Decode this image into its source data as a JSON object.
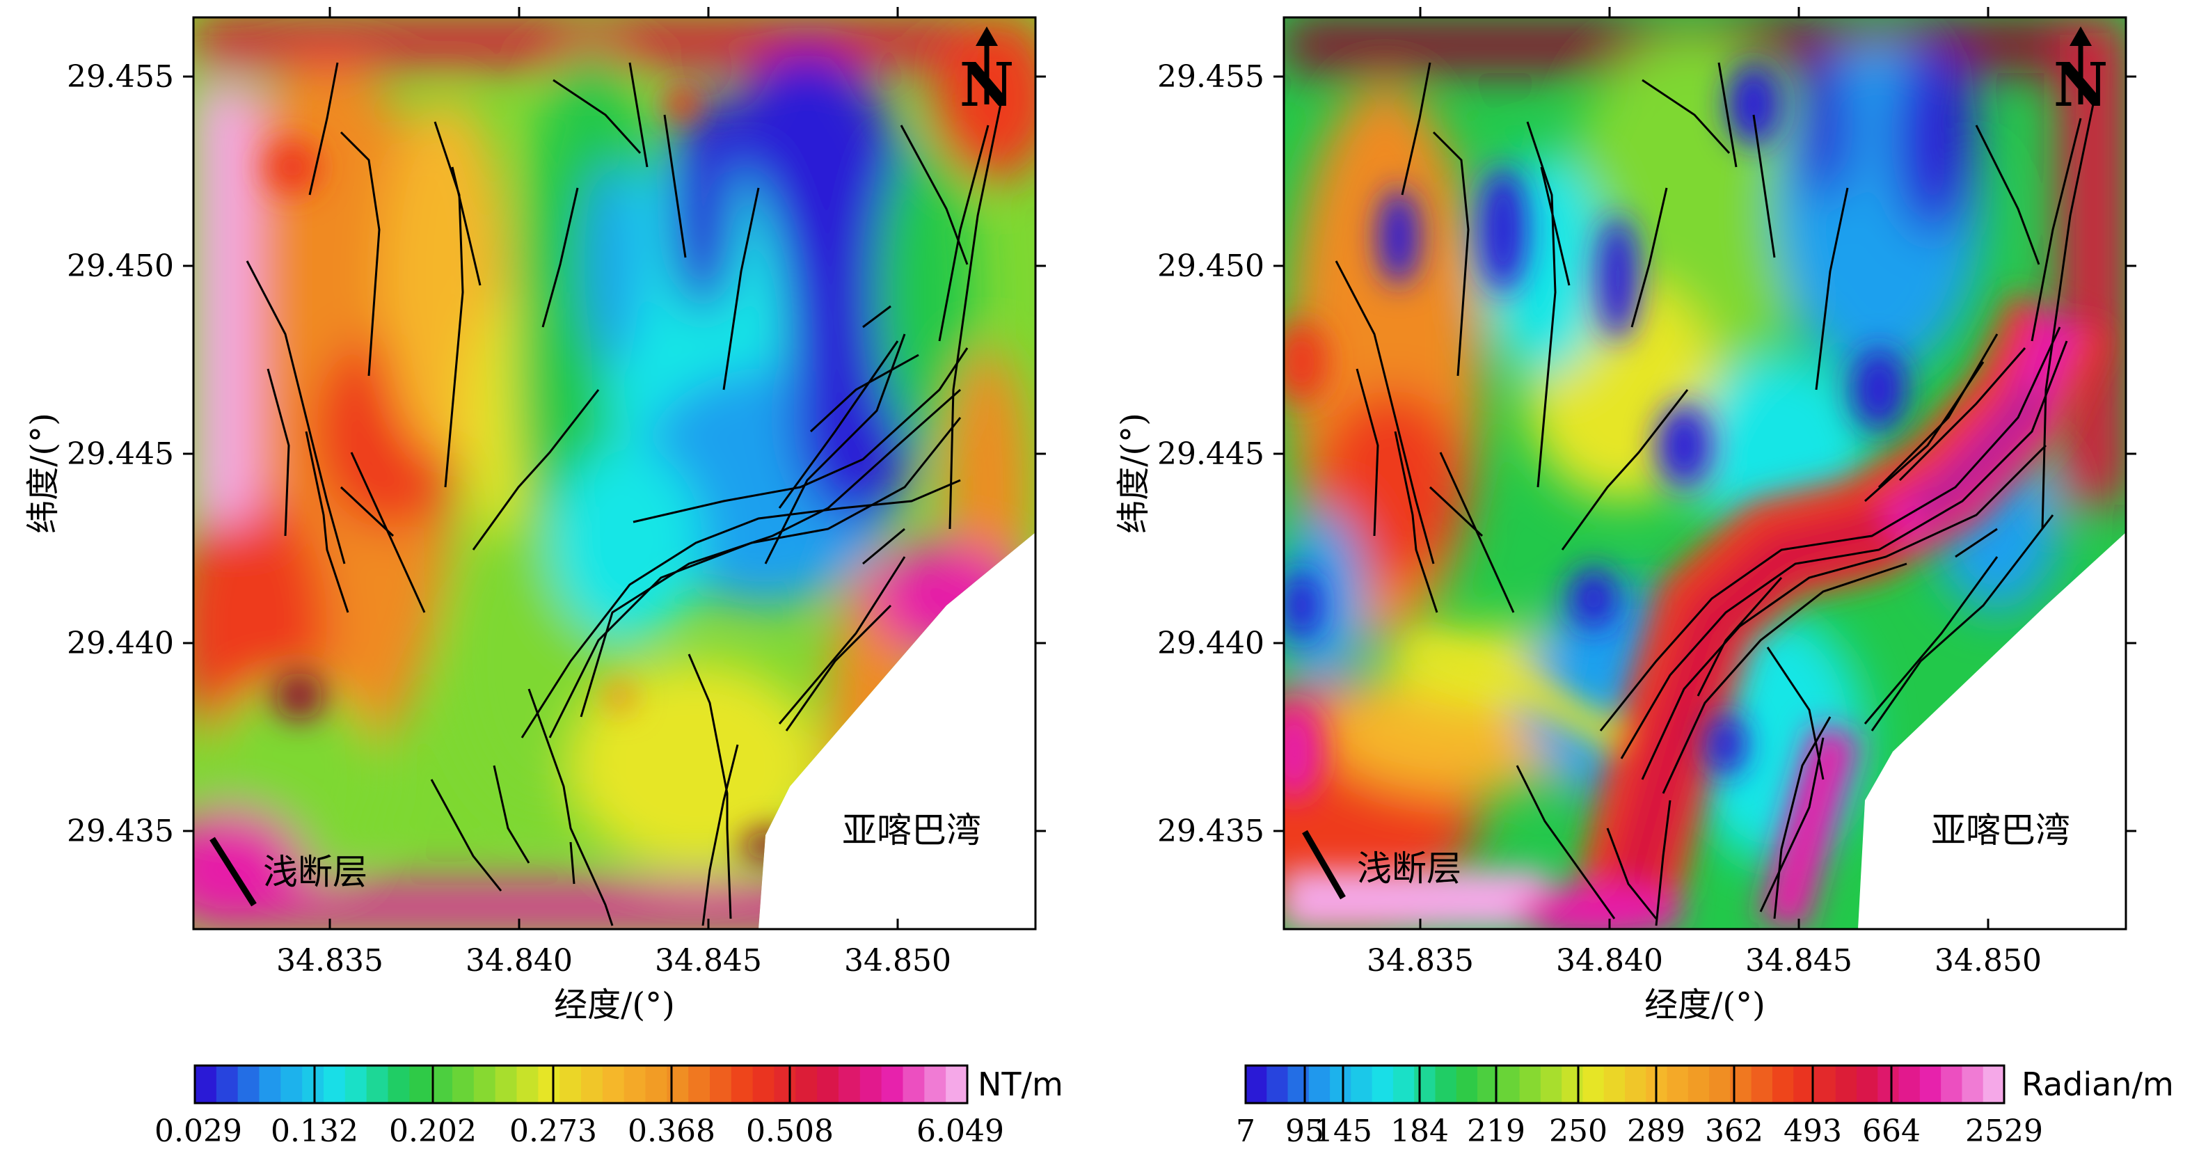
{
  "panels": [
    {
      "id": "horizontal-gradient",
      "unit": "NT/m",
      "x_label": "经度/(°)",
      "y_label": "纬度/(°)",
      "x_ticks": [
        "34.835",
        "34.840",
        "34.845",
        "34.850"
      ],
      "y_ticks": [
        "29.455",
        "29.450",
        "29.445",
        "29.440",
        "29.435"
      ],
      "legend_labels": [
        "0.029",
        "0.132",
        "0.202",
        "0.273",
        "0.368",
        "0.508",
        "6.049"
      ],
      "place_label": "亚喀巴湾",
      "legend_fault_label": "浅断层",
      "north_label": "N",
      "colors": [
        "#2a1ad6",
        "#1fa0ee",
        "#18e6e6",
        "#22c84a",
        "#7ed832",
        "#e6e626",
        "#f5b62a",
        "#f08a22",
        "#ee3a1a",
        "#d8163e",
        "#e61aa8",
        "#f5a8e8"
      ]
    },
    {
      "id": "tilt-angle",
      "unit": "Radian/m",
      "x_label": "经度/(°)",
      "y_label": "纬度/(°)",
      "x_ticks": [
        "34.835",
        "34.840",
        "34.845",
        "34.850"
      ],
      "y_ticks": [
        "29.455",
        "29.450",
        "29.445",
        "29.440",
        "29.435"
      ],
      "legend_labels": [
        "7",
        "95",
        "145",
        "184",
        "219",
        "250",
        "289",
        "362",
        "493",
        "664",
        "2529"
      ],
      "place_label": "亚喀巴湾",
      "legend_fault_label": "浅断层",
      "north_label": "N",
      "colors": [
        "#2a1ad6",
        "#1fa0ee",
        "#18e6e6",
        "#22c84a",
        "#7ed832",
        "#e6e626",
        "#f5b62a",
        "#f08a22",
        "#ee3a1a",
        "#d8163e",
        "#e61aa8",
        "#f5a8e8"
      ]
    }
  ]
}
